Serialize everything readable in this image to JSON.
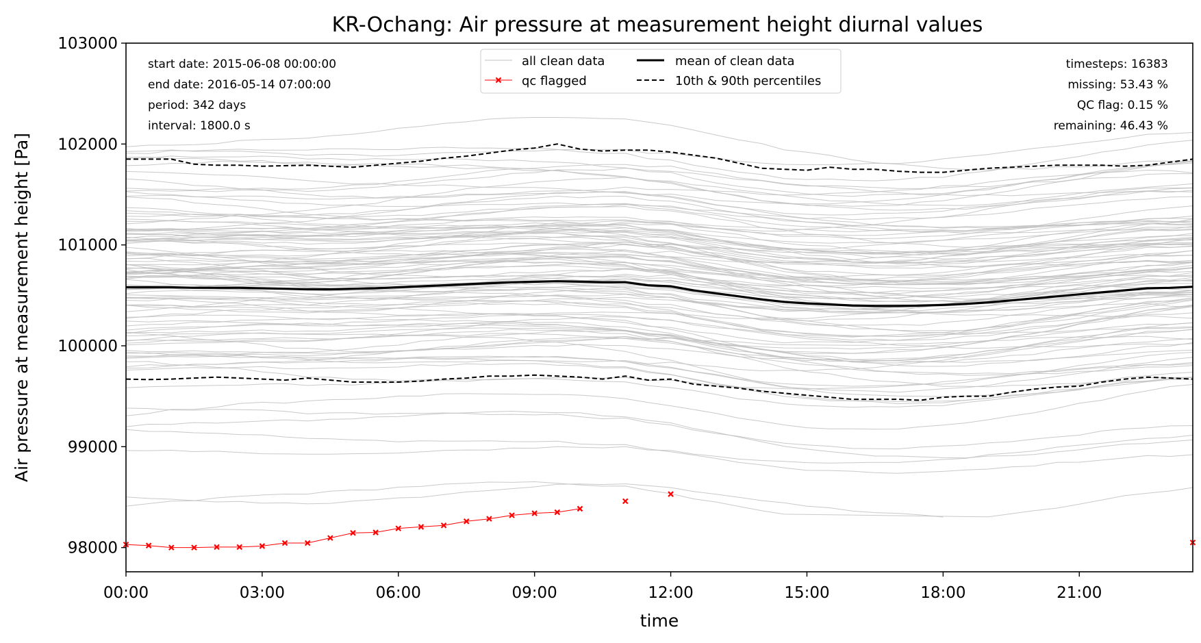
{
  "chart_data": {
    "type": "line",
    "title": "KR-Ochang: Air pressure at measurement height diurnal values",
    "xlabel": "time",
    "ylabel": "Air pressure at measurement height [Pa]",
    "xlim": [
      0,
      23.5
    ],
    "ylim": [
      97760,
      103000
    ],
    "xticks": [
      0,
      3,
      6,
      9,
      12,
      15,
      18,
      21
    ],
    "xtick_labels": [
      "00:00",
      "03:00",
      "06:00",
      "09:00",
      "12:00",
      "15:00",
      "18:00",
      "21:00"
    ],
    "yticks": [
      98000,
      99000,
      100000,
      101000,
      102000,
      103000
    ],
    "ytick_labels": [
      "98000",
      "99000",
      "100000",
      "101000",
      "102000",
      "103000"
    ],
    "grid": false,
    "legend_position": "top-center",
    "legend": {
      "all_clean": "all clean data",
      "qc": "qc flagged",
      "mean": "mean of clean data",
      "pct": "10th & 90th percentiles"
    },
    "annotations_left": [
      "start date: 2015-06-08 00:00:00",
      "end date: 2016-05-14 07:00:00",
      "period: 342 days",
      "interval: 1800.0 s"
    ],
    "annotations_right": [
      "timesteps: 16383",
      "missing: 53.43 %",
      "QC flag: 0.15 %",
      "remaining: 46.43 %"
    ],
    "x": [
      0,
      0.5,
      1,
      1.5,
      2,
      2.5,
      3,
      3.5,
      4,
      4.5,
      5,
      5.5,
      6,
      6.5,
      7,
      7.5,
      8,
      8.5,
      9,
      9.5,
      10,
      10.5,
      11,
      11.5,
      12,
      12.5,
      13,
      13.5,
      14,
      14.5,
      15,
      15.5,
      16,
      16.5,
      17,
      17.5,
      18,
      18.5,
      19,
      19.5,
      20,
      20.5,
      21,
      21.5,
      22,
      22.5,
      23,
      23.5
    ],
    "series": [
      {
        "name": "mean of clean data",
        "color": "#000000",
        "style": "solid",
        "values": [
          100580,
          100580,
          100580,
          100575,
          100575,
          100575,
          100570,
          100565,
          100560,
          100560,
          100565,
          100570,
          100580,
          100590,
          100600,
          100610,
          100620,
          100630,
          100635,
          100640,
          100635,
          100630,
          100630,
          100600,
          100590,
          100550,
          100520,
          100490,
          100460,
          100435,
          100420,
          100410,
          100400,
          100395,
          100395,
          100398,
          100405,
          100415,
          100430,
          100450,
          100470,
          100490,
          100510,
          100530,
          100550,
          100570,
          100575,
          100585
        ]
      },
      {
        "name": "90th percentile",
        "color": "#000000",
        "style": "dashed",
        "values": [
          101850,
          101850,
          101850,
          101800,
          101790,
          101790,
          101780,
          101785,
          101790,
          101780,
          101770,
          101790,
          101810,
          101830,
          101860,
          101880,
          101910,
          101940,
          101960,
          102000,
          101950,
          101930,
          101940,
          101940,
          101920,
          101890,
          101860,
          101810,
          101760,
          101750,
          101740,
          101770,
          101750,
          101750,
          101730,
          101720,
          101720,
          101740,
          101760,
          101770,
          101780,
          101790,
          101790,
          101790,
          101780,
          101790,
          101820,
          101850
        ]
      },
      {
        "name": "10th percentile",
        "color": "#000000",
        "style": "dashed",
        "values": [
          99670,
          99665,
          99670,
          99680,
          99690,
          99680,
          99670,
          99660,
          99680,
          99660,
          99640,
          99640,
          99640,
          99650,
          99670,
          99680,
          99700,
          99700,
          99710,
          99700,
          99690,
          99670,
          99700,
          99660,
          99670,
          99620,
          99600,
          99580,
          99550,
          99530,
          99510,
          99490,
          99470,
          99470,
          99470,
          99460,
          99490,
          99500,
          99500,
          99540,
          99570,
          99590,
          99600,
          99640,
          99670,
          99690,
          99680,
          99670
        ]
      },
      {
        "name": "qc flagged",
        "color": "#ff0000",
        "style": "marker-x",
        "points": [
          [
            0,
            98030
          ],
          [
            0.5,
            98020
          ],
          [
            1,
            98000
          ],
          [
            1.5,
            98000
          ],
          [
            2,
            98005
          ],
          [
            2.5,
            98005
          ],
          [
            3,
            98015
          ],
          [
            3.5,
            98045
          ],
          [
            4,
            98045
          ],
          [
            4.5,
            98095
          ],
          [
            5,
            98145
          ],
          [
            5.5,
            98150
          ],
          [
            6,
            98190
          ],
          [
            6.5,
            98205
          ],
          [
            7,
            98220
          ],
          [
            7.5,
            98260
          ],
          [
            8,
            98285
          ],
          [
            8.5,
            98320
          ],
          [
            9,
            98340
          ],
          [
            9.5,
            98350
          ],
          [
            10,
            98385
          ],
          [
            11,
            98460
          ],
          [
            12,
            98530
          ],
          [
            23.5,
            98050
          ]
        ]
      }
    ],
    "colors": {
      "clean_data": "#c0c0c0",
      "qc": "#ff0000",
      "mean": "#000000"
    }
  }
}
